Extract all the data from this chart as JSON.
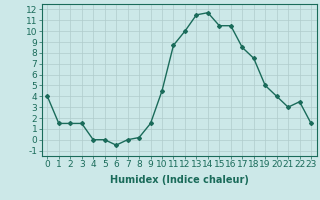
{
  "x": [
    0,
    1,
    2,
    3,
    4,
    5,
    6,
    7,
    8,
    9,
    10,
    11,
    12,
    13,
    14,
    15,
    16,
    17,
    18,
    19,
    20,
    21,
    22,
    23
  ],
  "y": [
    4.0,
    1.5,
    1.5,
    1.5,
    0.0,
    0.0,
    -0.5,
    0.0,
    0.2,
    1.5,
    4.5,
    8.7,
    10.0,
    11.5,
    11.7,
    10.5,
    10.5,
    8.5,
    7.5,
    5.0,
    4.0,
    3.0,
    3.5,
    1.5
  ],
  "line_color": "#1a6b5a",
  "bg_color": "#cce8e8",
  "grid_color": "#b0cccc",
  "xlabel": "Humidex (Indice chaleur)",
  "ylim": [
    -1.5,
    12.5
  ],
  "xlim": [
    -0.5,
    23.5
  ],
  "yticks": [
    -1,
    0,
    1,
    2,
    3,
    4,
    5,
    6,
    7,
    8,
    9,
    10,
    11,
    12
  ],
  "xticks": [
    0,
    1,
    2,
    3,
    4,
    5,
    6,
    7,
    8,
    9,
    10,
    11,
    12,
    13,
    14,
    15,
    16,
    17,
    18,
    19,
    20,
    21,
    22,
    23
  ],
  "xlabel_fontsize": 7,
  "tick_fontsize": 6.5,
  "marker": "D",
  "marker_size": 2.0,
  "line_width": 1.0
}
